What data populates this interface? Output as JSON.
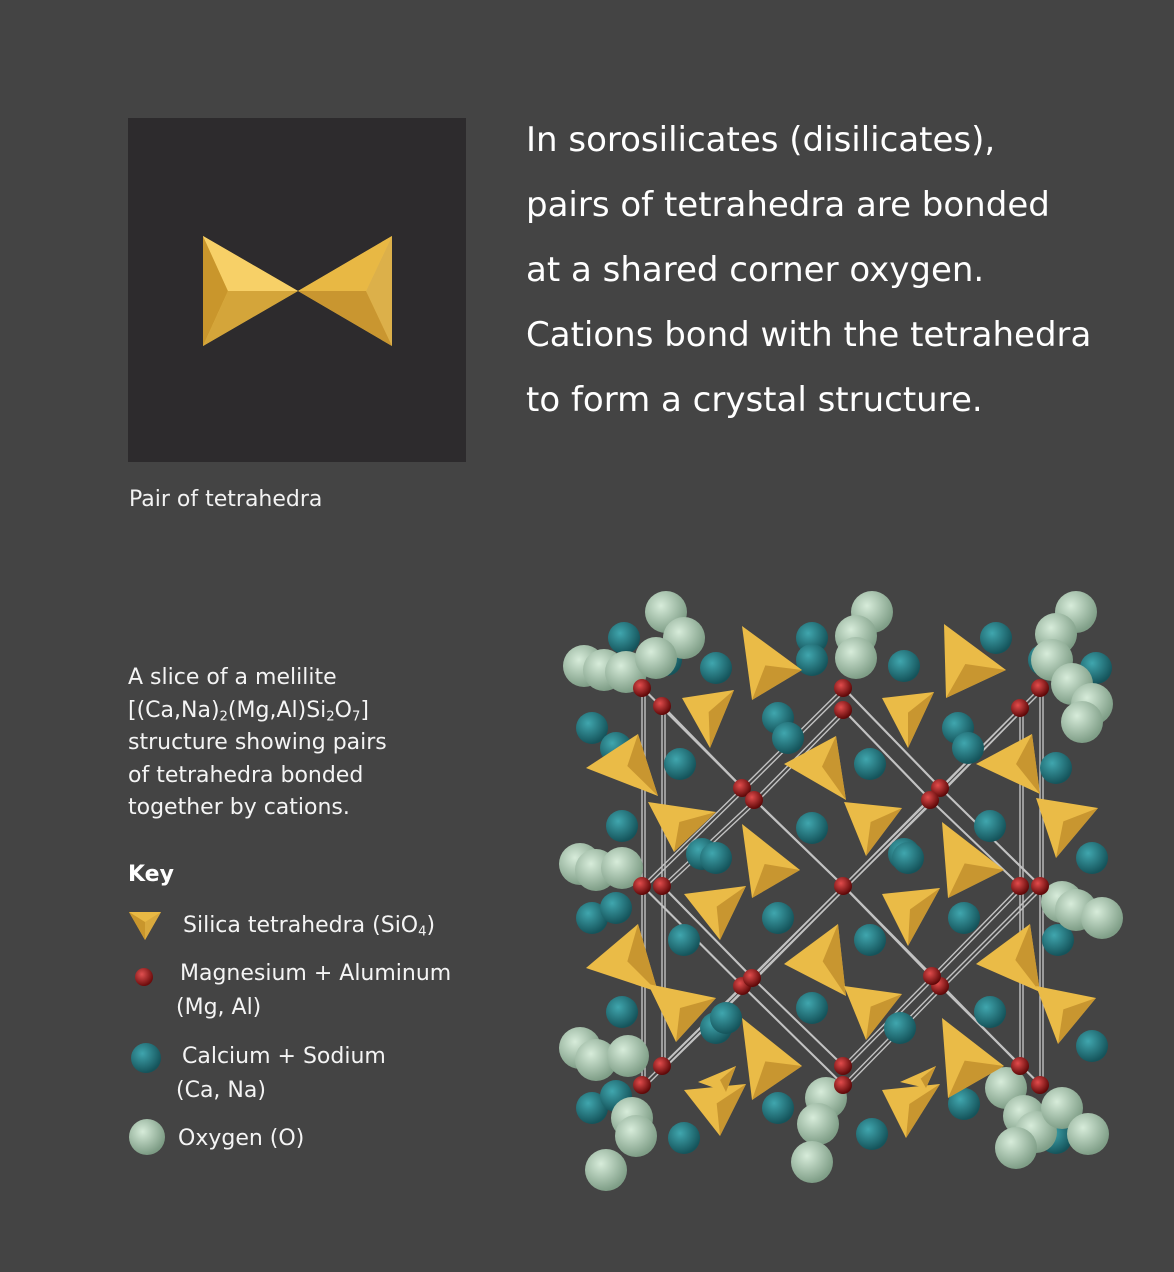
{
  "intro": {
    "lines": [
      "In sorosilicates (disilicates),",
      "pairs of tetrahedra are bonded",
      "at a shared corner oxygen.",
      "Cations bond with the tetrahedra",
      "to form a crystal structure."
    ]
  },
  "tetra_panel": {
    "caption": "Pair of tetrahedra"
  },
  "slice": {
    "line1": "A slice of a melilite",
    "formula": {
      "a": "[(Ca,Na)",
      "a_sub": "2",
      "b": "(Mg,Al)Si",
      "b_sub": "2",
      "c": "O",
      "c_sub": "7",
      "d": "]"
    },
    "line3": "structure showing pairs",
    "line4": "of tetrahedra bonded",
    "line5": "together by cations."
  },
  "key": {
    "title": "Key",
    "items": [
      {
        "icon": "tetrahedron-icon",
        "label_main": "Silica tetrahedra (SiO",
        "label_sub": "4",
        "label_end": ")"
      },
      {
        "icon": "dark-red-sphere-icon",
        "label_line1": "Magnesium + Aluminum",
        "label_line2": "(Mg, Al)"
      },
      {
        "icon": "teal-sphere-icon",
        "label_line1": "Calcium + Sodium",
        "label_line2": "(Ca, Na)"
      },
      {
        "icon": "pale-green-sphere-icon",
        "label_line1": "Oxygen (O)"
      }
    ]
  },
  "colors": {
    "background": "#444444",
    "panel": "#2d2b2d",
    "tetrahedra": "#e9b944",
    "mg_al": "#b51c1c",
    "ca_na": "#2a7f88",
    "oxygen": "#b4d2b8"
  }
}
